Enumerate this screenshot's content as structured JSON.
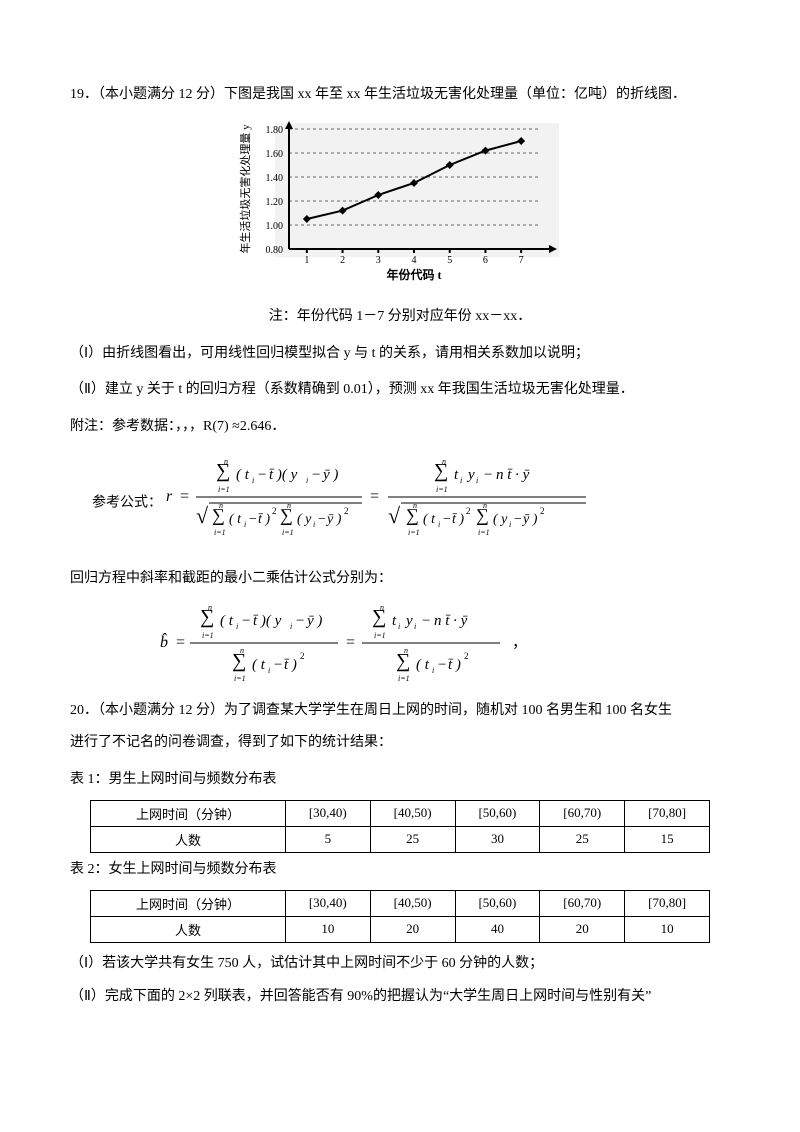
{
  "q19": {
    "title_line": "19．（本小题满分 12 分）下图是我国 xx 年至 xx 年生活垃圾无害化处理量（单位：亿吨）的折线图．",
    "figure": {
      "bg": "#f2f2f2",
      "axis_color": "#000000",
      "dash_color": "#666666",
      "line_color": "#000000",
      "x_label": "年份代码 t",
      "y_label": "年生活垃圾无害化处理量 y",
      "y_ticks": [
        "0.80",
        "1.00",
        "1.20",
        "1.40",
        "1.60",
        "1.80"
      ],
      "x_ticks": [
        "1",
        "2",
        "3",
        "4",
        "5",
        "6",
        "7"
      ],
      "y_values": [
        1.05,
        1.12,
        1.25,
        1.35,
        1.5,
        1.62,
        1.7
      ]
    },
    "note": "注：年份代码 1－7 分别对应年份 xx－xx．",
    "part1": "（Ⅰ）由折线图看出，可用线性回归模型拟合 y 与 t 的关系，请用相关系数加以说明；",
    "part2": "（Ⅱ）建立 y 关于 t 的回归方程（系数精确到 0.01），预测 xx 年我国生活垃圾无害化处理量．",
    "attach": "附注：参考数据：，，，R(7)  ≈2.646．",
    "ref_formula_label": "参考公式：",
    "reg_note": "回归方程中斜率和截距的最小二乘估计公式分别为："
  },
  "q20": {
    "title_line": "20．（本小题满分 12 分）为了调查某大学学生在周日上网的时间，随机对 100 名男生和 100 名女生",
    "title_line2": "进行了不记名的问卷调查，得到了如下的统计结果：",
    "table1_caption": "表 1：男生上网时间与频数分布表",
    "table2_caption": "表 2：女生上网时间与频数分布表",
    "header": [
      "上网时间（分钟）",
      "[30,40)",
      "[40,50)",
      "[50,60)",
      "[60,70)",
      "[70,80]"
    ],
    "row_label": "人数",
    "table1_values": [
      "5",
      "25",
      "30",
      "25",
      "15"
    ],
    "table2_values": [
      "10",
      "20",
      "40",
      "20",
      "10"
    ],
    "part1": "（Ⅰ）若该大学共有女生 750 人，试估计其中上网时间不少于 60 分钟的人数；",
    "part2": "（Ⅱ）完成下面的 2×2 列联表，并回答能否有 90%的把握认为“大学生周日上网时间与性别有关”"
  }
}
